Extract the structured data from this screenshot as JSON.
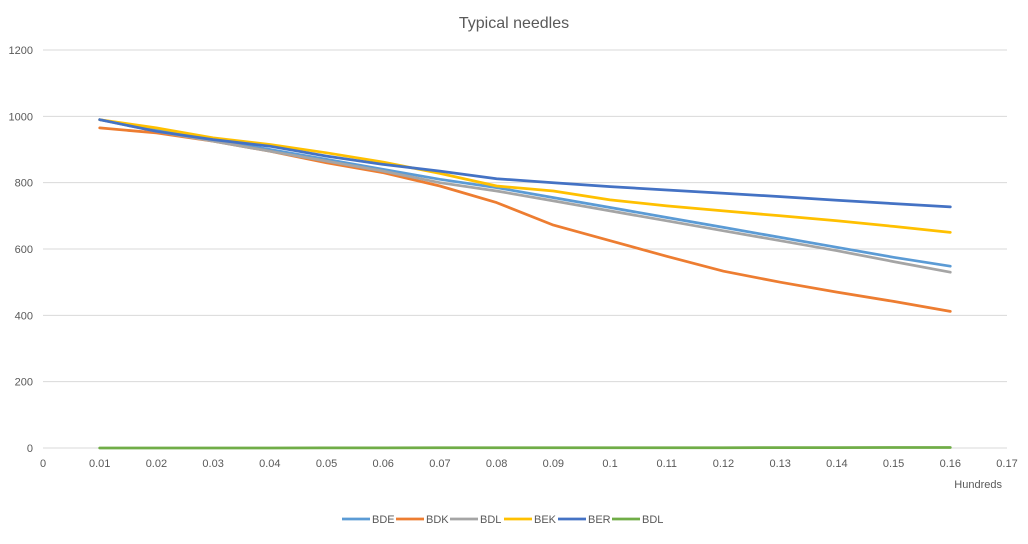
{
  "chart_data": {
    "type": "line",
    "title": "Typical needles",
    "xlabel": "Hundreds",
    "ylabel": "",
    "xlim": [
      0,
      0.17
    ],
    "ylim": [
      0,
      1200
    ],
    "x_ticks": [
      "0",
      "0.01",
      "0.02",
      "0.03",
      "0.04",
      "0.05",
      "0.06",
      "0.07",
      "0.08",
      "0.09",
      "0.1",
      "0.11",
      "0.12",
      "0.13",
      "0.14",
      "0.15",
      "0.16",
      "0.17"
    ],
    "y_ticks": [
      "0",
      "200",
      "400",
      "600",
      "800",
      "1000",
      "1200"
    ],
    "grid": true,
    "legend_position": "bottom",
    "series": [
      {
        "name": "BDE",
        "color": "#5B9BD5",
        "points": [
          [
            0.01,
            990
          ],
          [
            0.02,
            960
          ],
          [
            0.03,
            930
          ],
          [
            0.04,
            900
          ],
          [
            0.05,
            870
          ],
          [
            0.06,
            840
          ],
          [
            0.07,
            810
          ],
          [
            0.08,
            785
          ],
          [
            0.09,
            755
          ],
          [
            0.1,
            725
          ],
          [
            0.11,
            695
          ],
          [
            0.12,
            665
          ],
          [
            0.13,
            635
          ],
          [
            0.14,
            605
          ],
          [
            0.15,
            575
          ],
          [
            0.16,
            548
          ]
        ]
      },
      {
        "name": "BDK",
        "color": "#ED7D31",
        "points": [
          [
            0.01,
            965
          ],
          [
            0.02,
            950
          ],
          [
            0.03,
            925
          ],
          [
            0.04,
            895
          ],
          [
            0.05,
            860
          ],
          [
            0.06,
            830
          ],
          [
            0.07,
            790
          ],
          [
            0.08,
            740
          ],
          [
            0.09,
            672
          ],
          [
            0.1,
            625
          ],
          [
            0.11,
            578
          ],
          [
            0.12,
            533
          ],
          [
            0.13,
            500
          ],
          [
            0.14,
            470
          ],
          [
            0.15,
            442
          ],
          [
            0.16,
            412
          ]
        ]
      },
      {
        "name": "BDL",
        "color": "#A5A5A5",
        "points": [
          [
            0.01,
            990
          ],
          [
            0.02,
            955
          ],
          [
            0.03,
            925
          ],
          [
            0.04,
            895
          ],
          [
            0.05,
            865
          ],
          [
            0.06,
            835
          ],
          [
            0.07,
            800
          ],
          [
            0.08,
            775
          ],
          [
            0.09,
            745
          ],
          [
            0.1,
            715
          ],
          [
            0.11,
            685
          ],
          [
            0.12,
            655
          ],
          [
            0.13,
            625
          ],
          [
            0.14,
            595
          ],
          [
            0.15,
            562
          ],
          [
            0.16,
            530
          ]
        ]
      },
      {
        "name": "BEK",
        "color": "#FFC000",
        "points": [
          [
            0.01,
            990
          ],
          [
            0.02,
            965
          ],
          [
            0.03,
            935
          ],
          [
            0.04,
            915
          ],
          [
            0.05,
            890
          ],
          [
            0.06,
            862
          ],
          [
            0.07,
            828
          ],
          [
            0.08,
            790
          ],
          [
            0.09,
            775
          ],
          [
            0.1,
            748
          ],
          [
            0.11,
            730
          ],
          [
            0.12,
            715
          ],
          [
            0.13,
            700
          ],
          [
            0.14,
            685
          ],
          [
            0.15,
            668
          ],
          [
            0.16,
            650
          ]
        ]
      },
      {
        "name": "BER",
        "color": "#4472C4",
        "points": [
          [
            0.01,
            990
          ],
          [
            0.02,
            955
          ],
          [
            0.03,
            930
          ],
          [
            0.04,
            910
          ],
          [
            0.05,
            880
          ],
          [
            0.06,
            855
          ],
          [
            0.07,
            835
          ],
          [
            0.08,
            812
          ],
          [
            0.09,
            800
          ],
          [
            0.1,
            788
          ],
          [
            0.11,
            778
          ],
          [
            0.12,
            768
          ],
          [
            0.13,
            758
          ],
          [
            0.14,
            747
          ],
          [
            0.15,
            737
          ],
          [
            0.16,
            727
          ]
        ]
      },
      {
        "name": "BDL",
        "color": "#70AD47",
        "points": [
          [
            0.01,
            0
          ],
          [
            0.02,
            0
          ],
          [
            0.03,
            0
          ],
          [
            0.04,
            0
          ],
          [
            0.05,
            0.3
          ],
          [
            0.06,
            0.3
          ],
          [
            0.07,
            0.5
          ],
          [
            0.08,
            0.5
          ],
          [
            0.09,
            0.8
          ],
          [
            0.1,
            0.8
          ],
          [
            0.11,
            1
          ],
          [
            0.12,
            1
          ],
          [
            0.13,
            1.2
          ],
          [
            0.14,
            1.2
          ],
          [
            0.15,
            1.5
          ],
          [
            0.16,
            1.5
          ]
        ]
      }
    ]
  }
}
